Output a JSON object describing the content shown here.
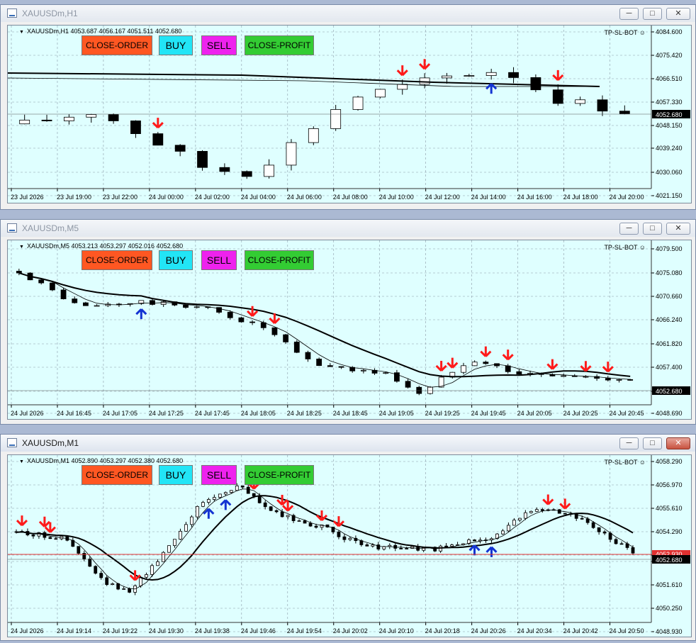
{
  "windows": [
    {
      "title": "XAUUSDm,H1",
      "active": false,
      "info": "XAUUSDm,H1  4053.687 4056.167 4051.511 4052.680",
      "bot_label": "TP-SL-BOT",
      "price_labels": [
        "4084.600",
        "4075.420",
        "4066.510",
        "4057.330",
        "4048.150",
        "4039.240",
        "4030.060",
        "4021.150"
      ],
      "current_price": "4052.680",
      "time_labels": [
        "23 Jul 2026",
        "23 Jul 19:00",
        "23 Jul 22:00",
        "24 Jul 00:00",
        "24 Jul 02:00",
        "24 Jul 04:00",
        "24 Jul 06:00",
        "24 Jul 08:00",
        "24 Jul 10:00",
        "24 Jul 12:00",
        "24 Jul 14:00",
        "24 Jul 16:00",
        "24 Jul 18:00",
        "24 Jul 20:00"
      ],
      "buttons": {
        "close_order": "CLOSE-ORDER",
        "buy": "BUY",
        "sell": "SELL",
        "close_profit": "CLOSE-PROFIT"
      }
    },
    {
      "title": "XAUUSDm,M5",
      "active": false,
      "info": "XAUUSDm,M5  4053.213 4053.297 4052.016 4052.680",
      "bot_label": "TP-SL-BOT",
      "price_labels": [
        "4079.500",
        "4075.080",
        "4070.660",
        "4066.240",
        "4061.820",
        "4057.400",
        "4052.680",
        "4048.690"
      ],
      "current_price": "4052.680",
      "time_labels": [
        "24 Jul 2026",
        "24 Jul 16:45",
        "24 Jul 17:05",
        "24 Jul 17:25",
        "24 Jul 17:45",
        "24 Jul 18:05",
        "24 Jul 18:25",
        "24 Jul 18:45",
        "24 Jul 19:05",
        "24 Jul 19:25",
        "24 Jul 19:45",
        "24 Jul 20:05",
        "24 Jul 20:25",
        "24 Jul 20:45"
      ],
      "buttons": {
        "close_order": "CLOSE-ORDER",
        "buy": "BUY",
        "sell": "SELL",
        "close_profit": "CLOSE-PROFIT"
      }
    },
    {
      "title": "XAUUSDm,M1",
      "active": true,
      "info": "XAUUSDm,M1  4052.890 4053.297 4052.380 4052.680",
      "bot_label": "TP-SL-BOT",
      "price_labels": [
        "4058.290",
        "4056.970",
        "4055.610",
        "4054.290",
        "4052.930",
        "4052.680",
        "4051.610",
        "4050.250",
        "4048.930"
      ],
      "current_price": "4052.680",
      "ref_price": "4052.930",
      "time_labels": [
        "24 Jul 2026",
        "24 Jul 19:14",
        "24 Jul 19:22",
        "24 Jul 19:30",
        "24 Jul 19:38",
        "24 Jul 19:46",
        "24 Jul 19:54",
        "24 Jul 20:02",
        "24 Jul 20:10",
        "24 Jul 20:18",
        "24 Jul 20:26",
        "24 Jul 20:34",
        "24 Jul 20:42",
        "24 Jul 20:50"
      ],
      "buttons": {
        "close_order": "CLOSE-ORDER",
        "buy": "BUY",
        "sell": "SELL",
        "close_profit": "CLOSE-PROFIT"
      }
    }
  ],
  "colors": {
    "chart_bg": "#dfffff",
    "grid": "#8a9aa8",
    "bull": "#ffffff",
    "bear": "#000000",
    "sell_arrow": "#ff1a1a",
    "buy_arrow": "#1434d2",
    "ref_line": "#e03030"
  }
}
